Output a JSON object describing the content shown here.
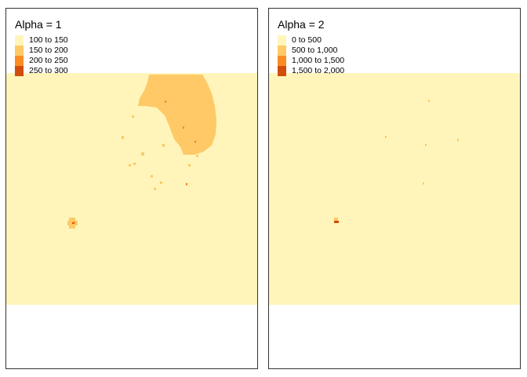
{
  "panels": [
    {
      "title": "Alpha = 1",
      "legend": [
        {
          "label": "100 to 150",
          "color": "#FFF5BA"
        },
        {
          "label": "150 to 200",
          "color": "#FEC966"
        },
        {
          "label": "200 to 250",
          "color": "#F98C22"
        },
        {
          "label": "250 to 300",
          "color": "#D14D0C"
        }
      ]
    },
    {
      "title": "Alpha = 2",
      "legend": [
        {
          "label": "0 to 500",
          "color": "#FFF5BA"
        },
        {
          "label": "500 to 1,000",
          "color": "#FEC966"
        },
        {
          "label": "1,000 to 1,500",
          "color": "#F98C22"
        },
        {
          "label": "1,500 to 2,000",
          "color": "#D14D0C"
        }
      ]
    }
  ]
}
